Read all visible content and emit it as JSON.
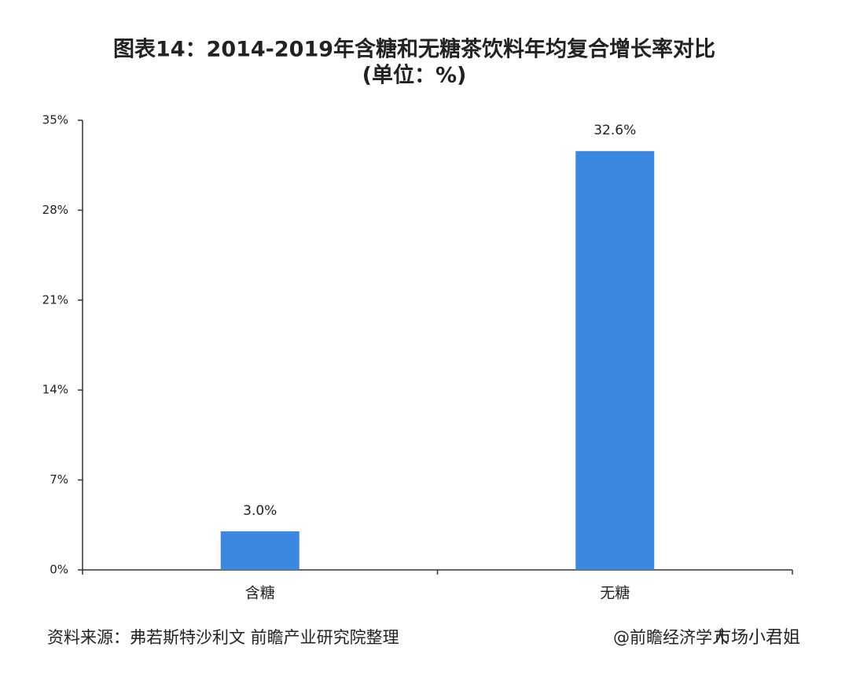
{
  "chart_data": {
    "type": "bar",
    "title": "图表14：2014-2019年含糖和无糖茶饮料年均复合增长率对比",
    "subtitle": "(单位：%)",
    "categories": [
      "含糖",
      "无糖"
    ],
    "values": [
      3.0,
      32.6
    ],
    "value_labels": [
      "3.0%",
      "32.6%"
    ],
    "color": "#3b87e2",
    "ylim": [
      0,
      35
    ],
    "yticks": [
      {
        "value": 0,
        "label": "0%"
      },
      {
        "value": 7,
        "label": "7%"
      },
      {
        "value": 14,
        "label": "14%"
      },
      {
        "value": 21,
        "label": "21%"
      },
      {
        "value": 28,
        "label": "28%"
      },
      {
        "value": 35,
        "label": "35%"
      }
    ],
    "grid": false,
    "source": "资料来源：弗若斯特沙利文 前瞻产业研究院整理",
    "credit": "@前瞻经济学人",
    "overlay": "市场小君姐"
  }
}
